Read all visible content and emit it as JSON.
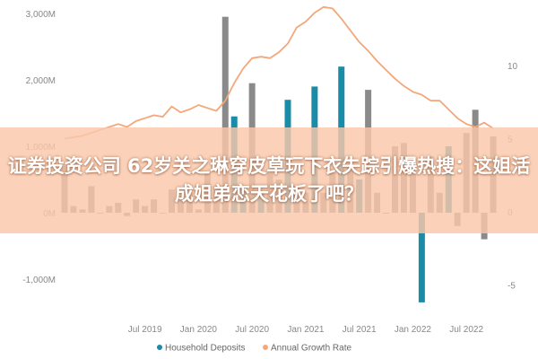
{
  "banner": {
    "headline": "证券投资公司 62岁关之琳穿皮草玩下衣失踪引爆热搜：这姐活成姐弟恋天花板了吧？"
  },
  "chart_data": {
    "type": "bar+line",
    "left_axis": {
      "ticks": [
        "3,000M",
        "2,000M",
        "1,000M",
        "0M",
        "-1,000M"
      ],
      "values": [
        3000,
        2000,
        1000,
        0,
        -1000
      ],
      "ylim": [
        -1200,
        3000
      ]
    },
    "right_axis": {
      "ticks": [
        "10",
        "5",
        "0",
        "-5"
      ],
      "values": [
        10,
        5,
        0,
        -5
      ],
      "ylim": [
        -7,
        14
      ]
    },
    "x_ticks": [
      "Jul 2019",
      "Jan 2020",
      "Jul 2020",
      "Jan 2021",
      "Jul 2021",
      "Jan 2022",
      "Jul 2022"
    ],
    "x_tick_months": [
      0,
      6,
      12,
      18,
      24,
      30,
      36
    ],
    "x_range_months": [
      -9,
      40
    ],
    "bars": {
      "name": "Household Deposits",
      "color": "#1a8ca8",
      "muted_color": "#8a8a8a",
      "months": [
        -9,
        -8,
        -7,
        -6,
        -5,
        -4,
        -3,
        -2,
        -1,
        0,
        1,
        2,
        3,
        4,
        5,
        6,
        7,
        8,
        9,
        10,
        11,
        12,
        13,
        14,
        15,
        16,
        17,
        18,
        19,
        20,
        21,
        22,
        23,
        24,
        25,
        26,
        27,
        28,
        29,
        30,
        31,
        32,
        33,
        34,
        35,
        36,
        37,
        38,
        39
      ],
      "values": [
        700,
        100,
        50,
        400,
        0,
        100,
        150,
        -50,
        200,
        100,
        200,
        0,
        350,
        250,
        300,
        50,
        600,
        400,
        2950,
        1450,
        400,
        1950,
        300,
        600,
        500,
        1700,
        400,
        300,
        1900,
        300,
        600,
        2200,
        700,
        500,
        1850,
        300,
        0,
        1000,
        1050,
        600,
        -1350,
        850,
        300,
        1000,
        -200,
        1200,
        1550,
        -400,
        1150
      ],
      "highlighted": [
        10,
        11,
        13,
        16,
        19,
        22,
        24,
        27,
        31,
        34,
        40,
        46
      ]
    },
    "line": {
      "name": "Annual Growth Rate",
      "color": "#f4a77a",
      "months": [
        -9,
        -8,
        -7,
        -6,
        -5,
        -4,
        -3,
        -2,
        -1,
        0,
        1,
        2,
        3,
        4,
        5,
        6,
        7,
        8,
        9,
        10,
        11,
        12,
        13,
        14,
        15,
        16,
        17,
        18,
        19,
        20,
        21,
        22,
        23,
        24,
        25,
        26,
        27,
        28,
        29,
        30,
        31,
        32,
        33,
        34,
        35,
        36,
        37,
        38,
        39
      ],
      "values": [
        5.0,
        5.1,
        5.2,
        5.4,
        5.6,
        5.8,
        6.0,
        5.8,
        6.2,
        6.4,
        6.6,
        6.5,
        7.2,
        6.8,
        7.0,
        7.3,
        7.1,
        6.9,
        7.6,
        8.8,
        9.8,
        10.5,
        10.6,
        10.5,
        10.9,
        11.5,
        12.6,
        13.0,
        13.6,
        14.0,
        13.9,
        13.2,
        12.4,
        11.6,
        11.0,
        10.3,
        9.7,
        9.1,
        8.6,
        8.2,
        8.0,
        7.6,
        7.6,
        7.0,
        6.4,
        6.0,
        5.8,
        6.1,
        5.7
      ]
    },
    "legend": {
      "placement": "bottom",
      "items": [
        {
          "label": "Household Deposits",
          "color": "#1a8ca8",
          "marker": "circle"
        },
        {
          "label": "Annual Growth Rate",
          "color": "#f4a77a",
          "marker": "circle"
        }
      ]
    }
  }
}
